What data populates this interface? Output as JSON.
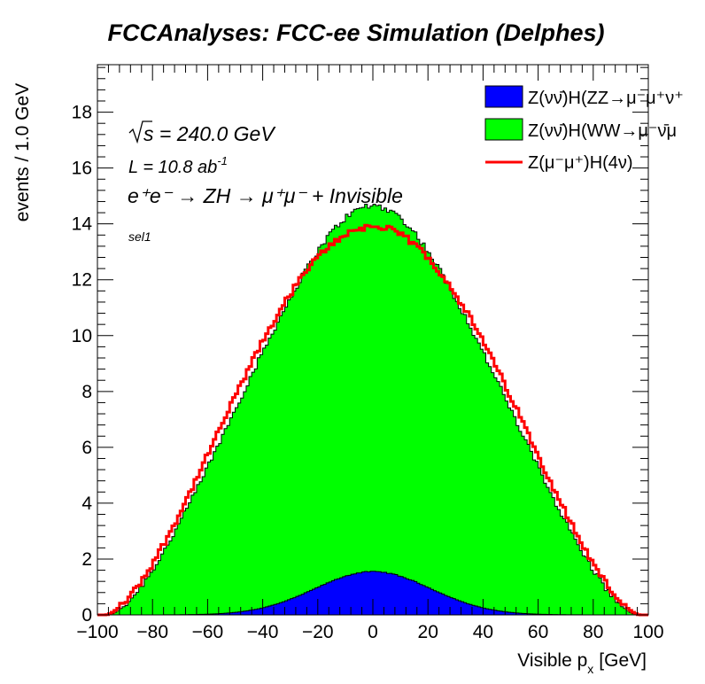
{
  "chart_data": {
    "type": "histogram",
    "title": "FCCAnalyses: FCC-ee Simulation (Delphes)",
    "xlabel": "Visible p_x [GeV]",
    "xlabel_main": "Visible p",
    "xlabel_sub": "x",
    "xlabel_unit": "[GeV]",
    "ylabel": "events / 1.0 GeV",
    "xlim": [
      -100,
      100
    ],
    "ylim": [
      0,
      19.7
    ],
    "x_ticks": [
      "−100",
      "−80",
      "−60",
      "−40",
      "−20",
      "0",
      "20",
      "40",
      "60",
      "80",
      "100"
    ],
    "y_ticks": [
      "0",
      "2",
      "4",
      "6",
      "8",
      "10",
      "12",
      "14",
      "16",
      "18"
    ],
    "bin_width": 1.0,
    "legend_position": "top-right",
    "annotations": {
      "sqrt_s": "s = 240.0 GeV",
      "lumi": "L = 10.8 ab",
      "lumi_exp": "-1",
      "process": "e⁺e⁻ → ZH → μ⁺μ⁻ + Invisible",
      "selection": "sel1"
    },
    "series": [
      {
        "name": "Z(νν̄)H(ZZ→μ⁻μ⁺ν⁺",
        "style": "stacked-filled",
        "color": "#0000ff",
        "profile": {
          "peak": 1.55,
          "center": 0,
          "sigma": 21
        }
      },
      {
        "name": "Z(νν̄)H(WW→μ⁻ν̄μ",
        "style": "stacked-filled",
        "color": "#00ff00",
        "profile": {
          "peak": 13.1,
          "center": 0,
          "halfwidth": 96
        }
      },
      {
        "name": "Z(μ⁻μ⁺)H(4ν)",
        "style": "line",
        "color": "#ff0000",
        "profile": {
          "peak": 13.9,
          "center": 0,
          "halfwidth": 97
        }
      }
    ]
  }
}
